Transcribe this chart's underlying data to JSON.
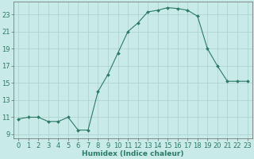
{
  "x": [
    0,
    1,
    2,
    3,
    4,
    5,
    6,
    7,
    8,
    9,
    10,
    11,
    12,
    13,
    14,
    15,
    16,
    17,
    18,
    19,
    20,
    21,
    22,
    23
  ],
  "y": [
    10.8,
    11.0,
    11.0,
    10.5,
    10.5,
    11.0,
    9.5,
    9.5,
    14.0,
    16.0,
    18.5,
    21.0,
    22.0,
    23.3,
    23.5,
    23.8,
    23.7,
    23.5,
    22.8,
    19.0,
    17.0,
    15.2,
    15.2,
    15.2
  ],
  "xlabel": "Humidex (Indice chaleur)",
  "xlim": [
    -0.5,
    23.5
  ],
  "ylim": [
    8.5,
    24.5
  ],
  "yticks": [
    9,
    11,
    13,
    15,
    17,
    19,
    21,
    23
  ],
  "xticks": [
    0,
    1,
    2,
    3,
    4,
    5,
    6,
    7,
    8,
    9,
    10,
    11,
    12,
    13,
    14,
    15,
    16,
    17,
    18,
    19,
    20,
    21,
    22,
    23
  ],
  "line_color": "#2d7a68",
  "bg_color": "#c8eae8",
  "grid_color": "#aacfcc",
  "spine_color": "#666666",
  "label_fontsize": 6.5,
  "tick_fontsize": 6.0
}
